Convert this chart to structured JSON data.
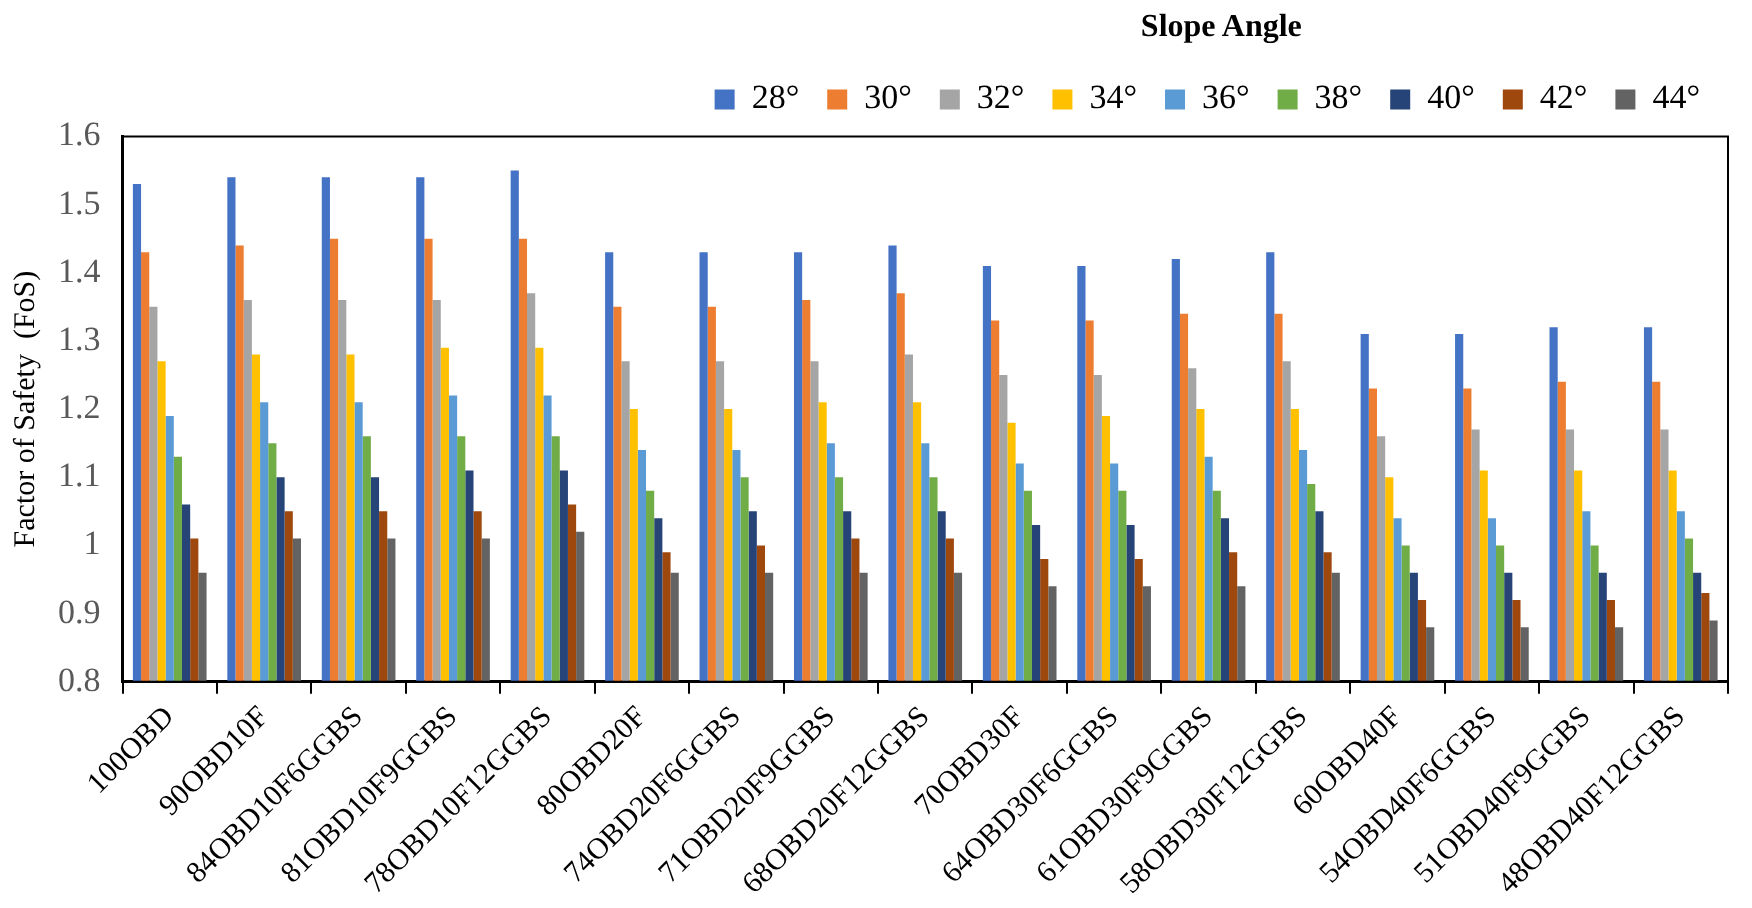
{
  "chart_data": {
    "type": "bar",
    "ylabel": "Factor of Safety  (FoS)",
    "legend_title": "Slope Angle",
    "legend": "top right",
    "grid": false,
    "categories": [
      "100OBD",
      "90OBD10F",
      "84OBD10F6GGBS",
      "81OBD10F9GGBS",
      "78OBD10F12GGBS",
      "80OBD20F",
      "74OBD20F6GGBS",
      "71OBD20F9GGBS",
      "68OBD20F12GGBS",
      "70OBD30F",
      "64OBD30F6GGBS",
      "61OBD30F9GGBS",
      "58OBD30F12GGBS",
      "60OBD40F",
      "54OBD40F6GGBS",
      "51OBD40F9GGBS",
      "48OBD40F12GGBS"
    ],
    "ylim": [
      0.8,
      1.6
    ],
    "yticks": [
      0.8,
      0.9,
      1,
      1.1,
      1.2,
      1.3,
      1.4,
      1.5,
      1.6
    ],
    "series": [
      {
        "name": "28°",
        "color": "#4472c4",
        "values": [
          1.53,
          1.54,
          1.54,
          1.54,
          1.55,
          1.43,
          1.43,
          1.43,
          1.44,
          1.41,
          1.41,
          1.42,
          1.43,
          1.31,
          1.31,
          1.32,
          1.32
        ]
      },
      {
        "name": "30°",
        "color": "#ed7d31",
        "values": [
          1.43,
          1.44,
          1.45,
          1.45,
          1.45,
          1.35,
          1.35,
          1.36,
          1.37,
          1.33,
          1.33,
          1.34,
          1.34,
          1.23,
          1.23,
          1.24,
          1.24
        ]
      },
      {
        "name": "32°",
        "color": "#a5a5a5",
        "values": [
          1.35,
          1.36,
          1.36,
          1.36,
          1.37,
          1.27,
          1.27,
          1.27,
          1.28,
          1.25,
          1.25,
          1.26,
          1.27,
          1.16,
          1.17,
          1.17,
          1.17
        ]
      },
      {
        "name": "34°",
        "color": "#ffc000",
        "values": [
          1.27,
          1.28,
          1.28,
          1.29,
          1.29,
          1.2,
          1.2,
          1.21,
          1.21,
          1.18,
          1.19,
          1.2,
          1.2,
          1.1,
          1.11,
          1.11,
          1.11
        ]
      },
      {
        "name": "36°",
        "color": "#5b9bd5",
        "values": [
          1.19,
          1.21,
          1.21,
          1.22,
          1.22,
          1.14,
          1.14,
          1.15,
          1.15,
          1.12,
          1.12,
          1.13,
          1.14,
          1.04,
          1.04,
          1.05,
          1.05
        ]
      },
      {
        "name": "38°",
        "color": "#70ad47",
        "values": [
          1.13,
          1.15,
          1.16,
          1.16,
          1.16,
          1.08,
          1.1,
          1.1,
          1.1,
          1.08,
          1.08,
          1.08,
          1.09,
          1,
          1,
          1,
          1.01
        ]
      },
      {
        "name": "40°",
        "color": "#264478",
        "values": [
          1.06,
          1.1,
          1.1,
          1.11,
          1.11,
          1.04,
          1.05,
          1.05,
          1.05,
          1.03,
          1.03,
          1.04,
          1.05,
          0.96,
          0.96,
          0.96,
          0.96
        ]
      },
      {
        "name": "42°",
        "color": "#9e480e",
        "values": [
          1.01,
          1.05,
          1.05,
          1.05,
          1.06,
          0.99,
          1,
          1.01,
          1.01,
          0.98,
          0.98,
          0.99,
          0.99,
          0.92,
          0.92,
          0.92,
          0.93
        ]
      },
      {
        "name": "44°",
        "color": "#636363",
        "values": [
          0.96,
          1.01,
          1.01,
          1.01,
          1.02,
          0.96,
          0.96,
          0.96,
          0.96,
          0.94,
          0.94,
          0.94,
          0.96,
          0.88,
          0.88,
          0.88,
          0.89
        ]
      }
    ]
  }
}
